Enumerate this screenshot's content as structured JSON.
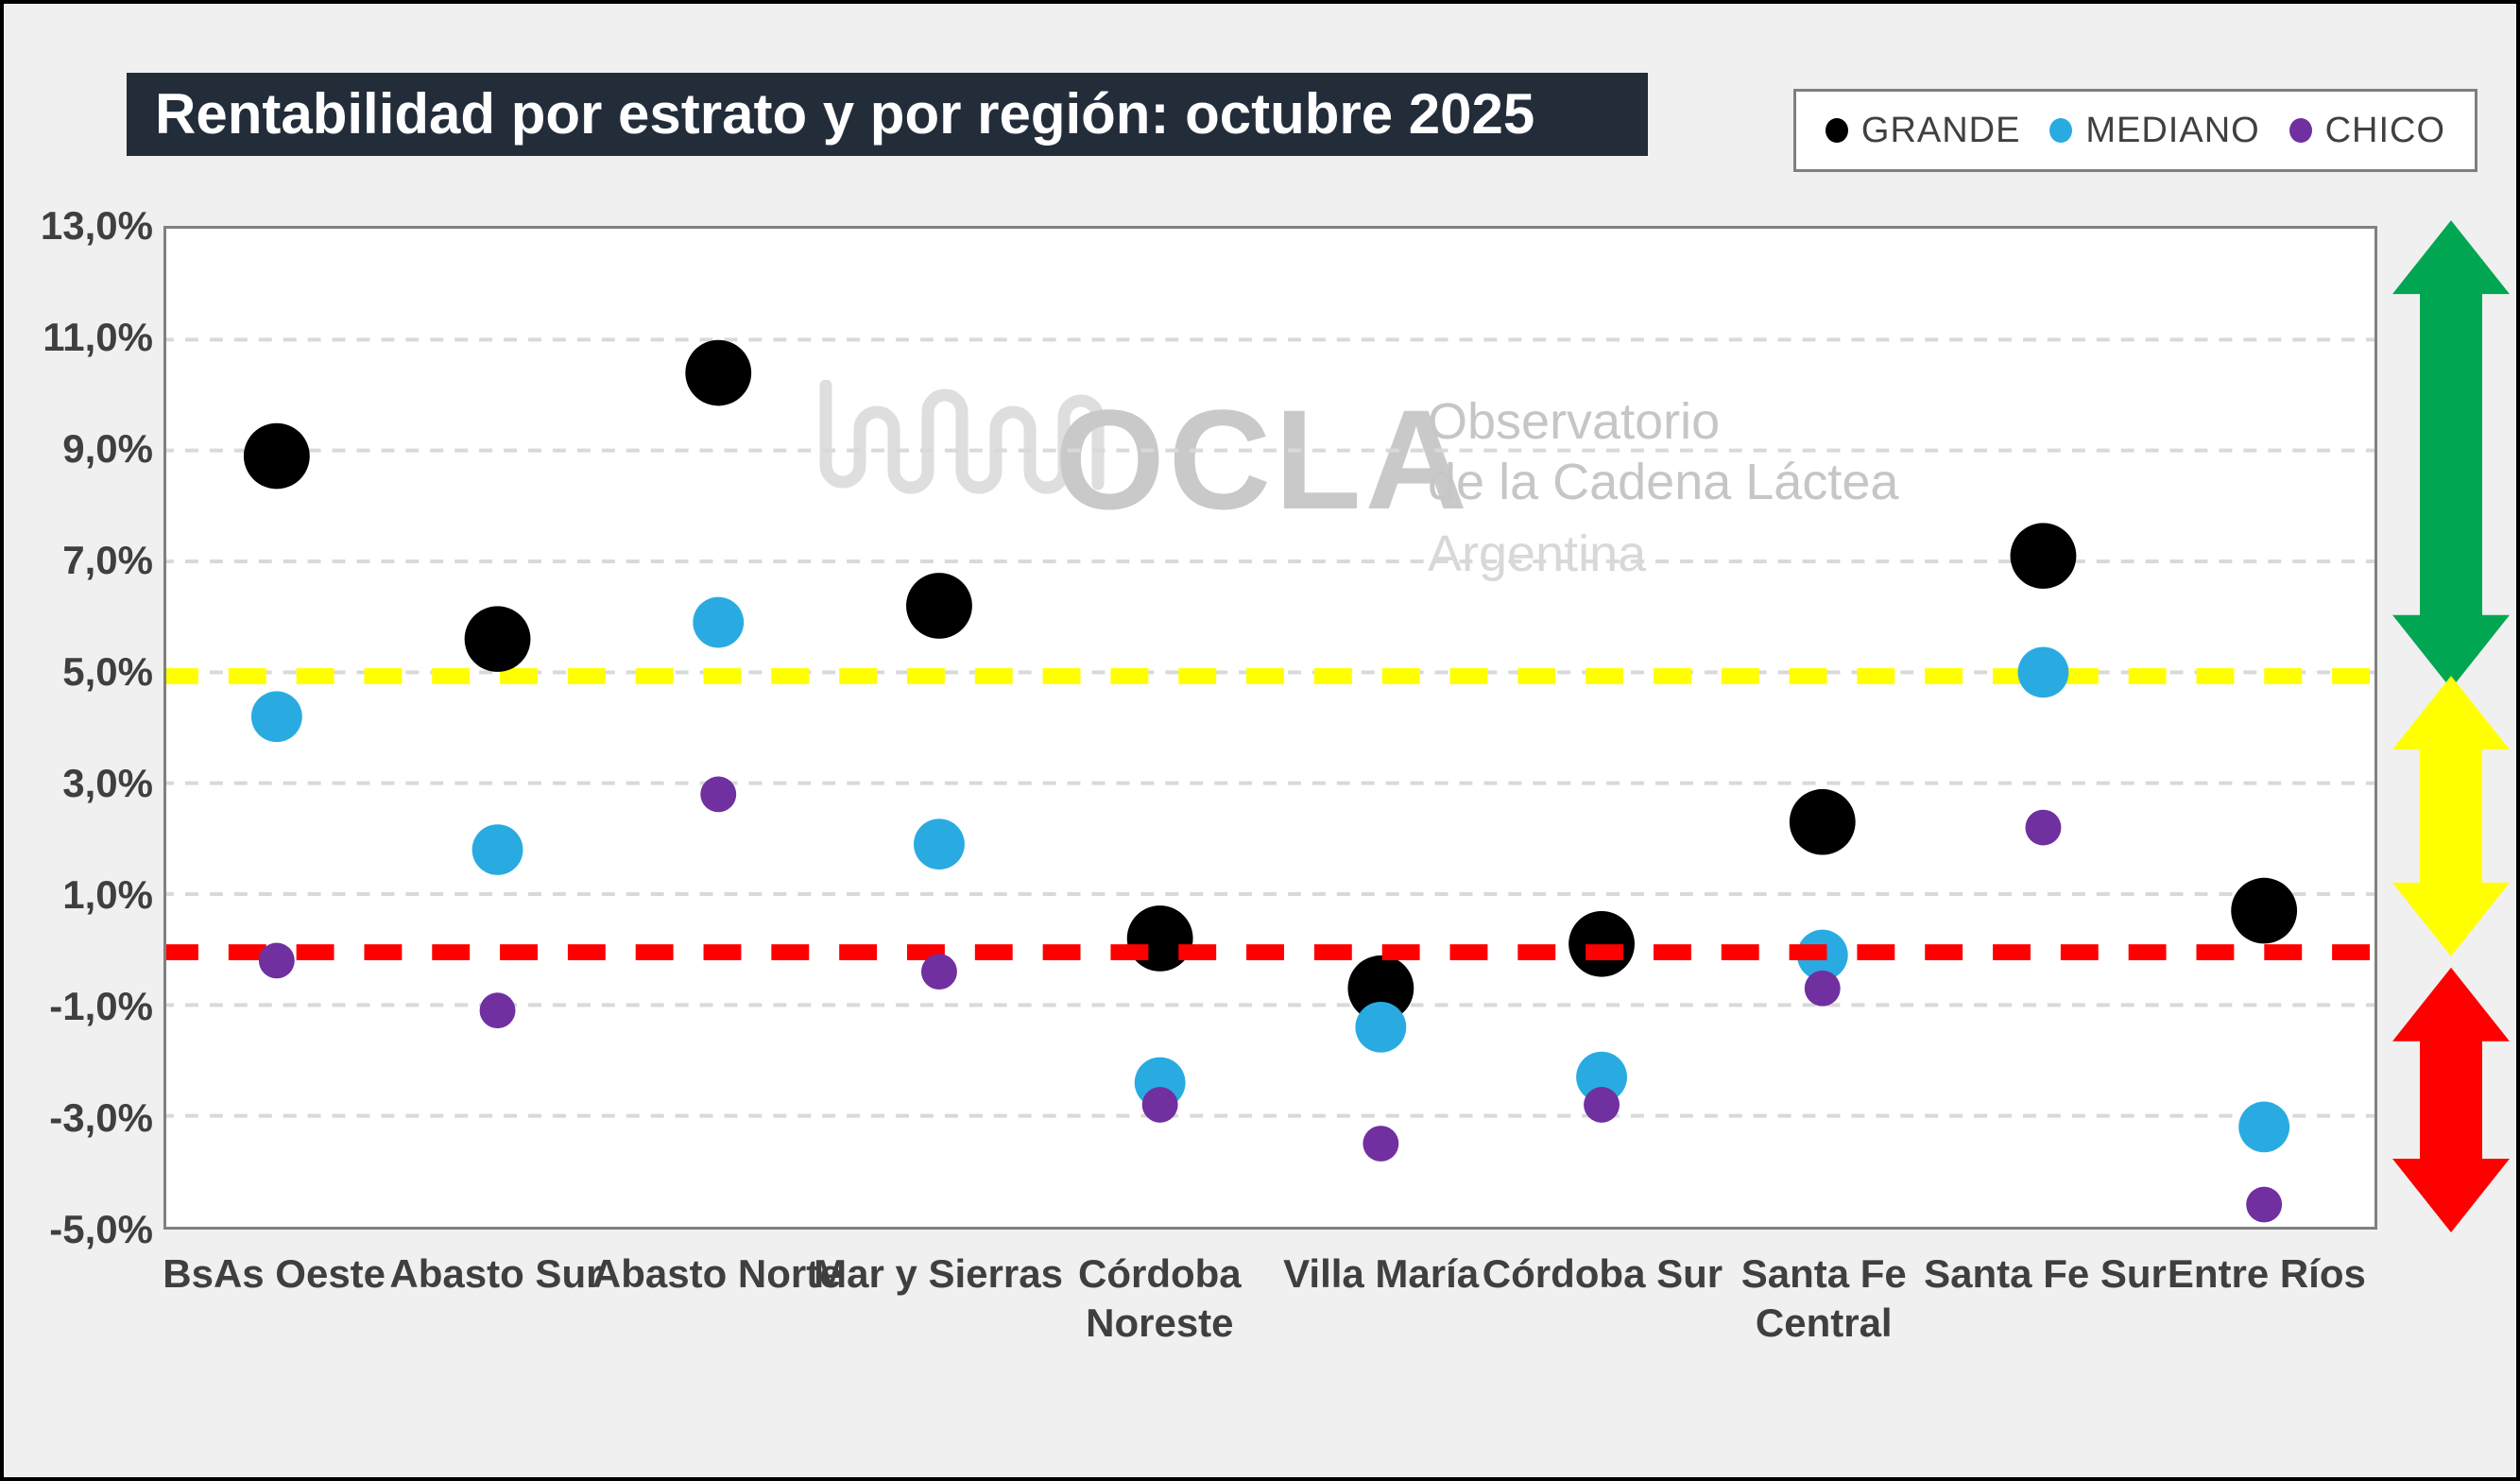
{
  "header": {
    "title": "Rentabilidad por estrato y por región: octubre 2025",
    "bg_color": "#232c39",
    "text_color": "#ffffff"
  },
  "legend": {
    "items": [
      {
        "label": "GRANDE",
        "color": "#000000"
      },
      {
        "label": "MEDIANO",
        "color": "#29abe2"
      },
      {
        "label": "CHICO",
        "color": "#7030a0"
      }
    ]
  },
  "watermark": {
    "icon": "pulse-squiggle-icon",
    "brand": "OCLA",
    "line1": "Observatorio",
    "line2": "de la Cadena Láctea",
    "line3": "Argentina"
  },
  "chart_data": {
    "type": "scatter",
    "title": "Rentabilidad por estrato y por región: octubre 2025",
    "categories": [
      "BsAs Oeste",
      "Abasto Sur",
      "Abasto Norte",
      "Mar y Sierras",
      "Córdoba Noreste",
      "Villa María",
      "Córdoba Sur",
      "Santa Fe Central",
      "Santa Fe Sur",
      "Entre Ríos"
    ],
    "category_display_lines": [
      [
        "BsAs Oeste"
      ],
      [
        "Abasto Sur"
      ],
      [
        "Abasto Norte"
      ],
      [
        "Mar y Sierras"
      ],
      [
        "Córdoba",
        "Noreste"
      ],
      [
        "Villa María"
      ],
      [
        "Córdoba Sur"
      ],
      [
        "Santa Fe",
        "Central"
      ],
      [
        "Santa Fe Sur"
      ],
      [
        "Entre Ríos"
      ]
    ],
    "series": [
      {
        "name": "GRANDE",
        "color": "#000000",
        "dot_radius": 35,
        "values": [
          8.9,
          5.6,
          10.4,
          6.2,
          0.2,
          -0.7,
          0.1,
          2.3,
          7.1,
          0.7
        ]
      },
      {
        "name": "MEDIANO",
        "color": "#29abe2",
        "dot_radius": 27,
        "values": [
          4.2,
          1.8,
          5.9,
          1.9,
          -2.4,
          -1.4,
          -2.3,
          -0.1,
          5.0,
          -3.2
        ]
      },
      {
        "name": "CHICO",
        "color": "#7030a0",
        "dot_radius": 19,
        "values": [
          -0.2,
          -1.1,
          2.8,
          -0.4,
          -2.8,
          -3.5,
          -2.8,
          -0.7,
          2.2,
          -4.6
        ]
      }
    ],
    "ylabel": "",
    "xlabel": "",
    "ylim": [
      -5.0,
      13.0
    ],
    "y_tick_step": 2,
    "y_tick_labels": [
      "13,0%",
      "11,0%",
      "9,0%",
      "7,0%",
      "5,0%",
      "3,0%",
      "1,0%",
      "-1,0%",
      "-3,0%",
      "-5,0%"
    ],
    "grid": true,
    "gridline_color": "#d9d9d9",
    "legend_position": "top-right",
    "reference_lines": [
      {
        "name": "yellow-threshold",
        "value": 4.93,
        "color": "#ffff00"
      },
      {
        "name": "red-threshold",
        "value": -0.05,
        "color": "#ff0000"
      }
    ],
    "zones": [
      {
        "name": "green-zone-above-5pct",
        "color": "#00a651",
        "from": 13.1,
        "to": 4.7
      },
      {
        "name": "yellow-zone-0-to-5pct",
        "color": "#ffff00",
        "from": 4.93,
        "to": -0.1
      },
      {
        "name": "red-zone-below-0pct",
        "color": "#ff0000",
        "from": -0.3,
        "to": -5.05
      }
    ]
  }
}
